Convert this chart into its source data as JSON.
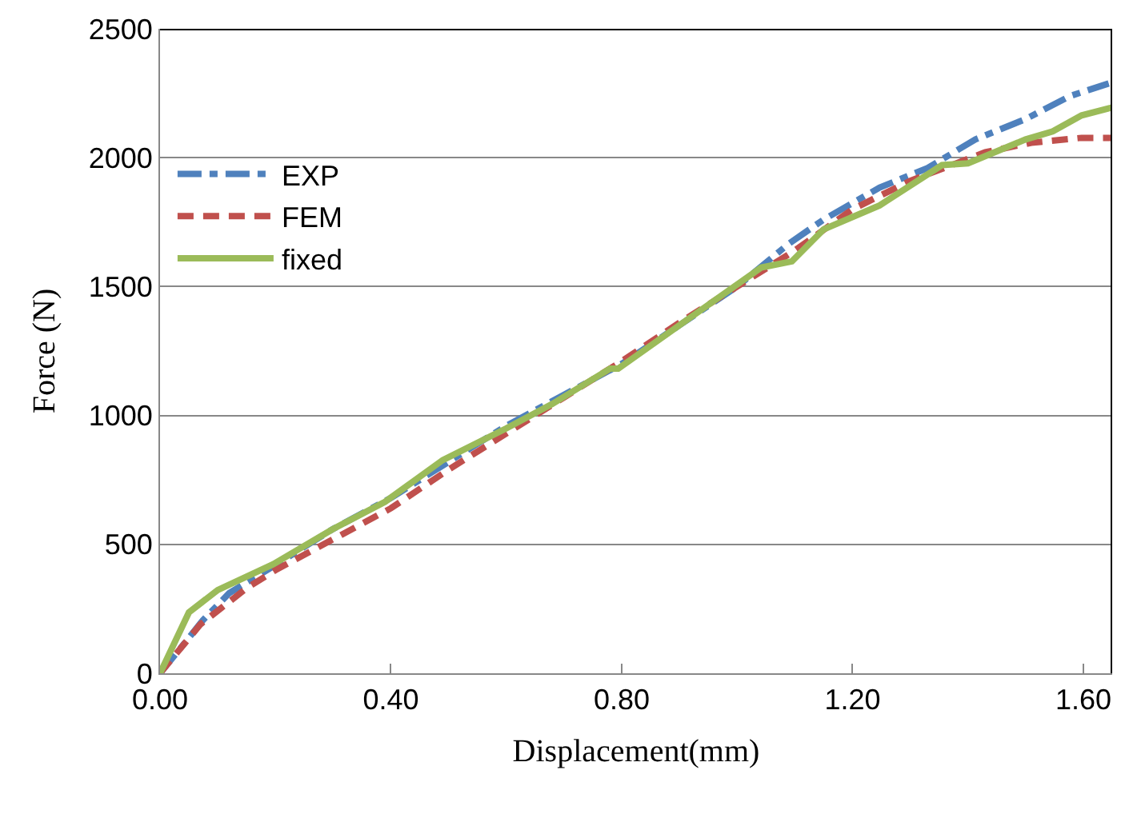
{
  "chart_data": {
    "type": "line",
    "xlabel": "Displacement(mm)",
    "ylabel": "Force (N)",
    "xlim": [
      0,
      1.65
    ],
    "xticks": [
      {
        "value": 0,
        "label": "0.00"
      },
      {
        "value": 0.4,
        "label": "0.40"
      },
      {
        "value": 0.8,
        "label": "0.80"
      },
      {
        "value": 1.2,
        "label": "1.20"
      },
      {
        "value": 1.6,
        "label": "1.60"
      }
    ],
    "ylim": [
      0,
      2500
    ],
    "yticks": [
      0,
      500,
      1000,
      1500,
      2000,
      2500
    ],
    "grid": "y",
    "legend": "left",
    "marker": "none",
    "series": [
      {
        "name": "EXP",
        "color": "#4f81bd",
        "line_style": "dashdot",
        "x": [
          0,
          0.04,
          0.074,
          0.12,
          0.2,
          0.3,
          0.4,
          0.5,
          0.6,
          0.7,
          0.8,
          0.9,
          1.0,
          1.09,
          1.15,
          1.247,
          1.33,
          1.413,
          1.5,
          1.577,
          1.644
        ],
        "values": [
          0,
          110,
          205,
          311,
          420,
          560,
          680,
          820,
          960,
          1080,
          1200,
          1350,
          1500,
          1667,
          1760,
          1884,
          1960,
          2071,
          2150,
          2239,
          2288
        ]
      },
      {
        "name": "FEM",
        "color": "#c0504d",
        "line_style": "dashed",
        "x": [
          0,
          0.07,
          0.15,
          0.2,
          0.3,
          0.4,
          0.5,
          0.6,
          0.7,
          0.8,
          0.9,
          1.0,
          1.1,
          1.2,
          1.3,
          1.43,
          1.51,
          1.597,
          1.65
        ],
        "values": [
          0,
          190,
          330,
          400,
          520,
          640,
          790,
          930,
          1070,
          1210,
          1360,
          1500,
          1640,
          1800,
          1910,
          2021,
          2058,
          2077,
          2077
        ]
      },
      {
        "name": "fixed",
        "color": "#9bbb59",
        "line_style": "solid",
        "x": [
          0,
          0.05,
          0.1,
          0.196,
          0.3,
          0.39,
          0.49,
          0.6,
          0.68,
          0.78,
          0.794,
          0.9,
          1.042,
          1.095,
          1.15,
          1.247,
          1.355,
          1.4,
          1.5,
          1.547,
          1.597,
          1.65
        ],
        "values": [
          0,
          236,
          323,
          423,
          560,
          665,
          827,
          950,
          1045,
          1182,
          1182,
          1350,
          1574,
          1598,
          1722,
          1815,
          1971,
          1978,
          2071,
          2102,
          2164,
          2195
        ]
      }
    ]
  }
}
